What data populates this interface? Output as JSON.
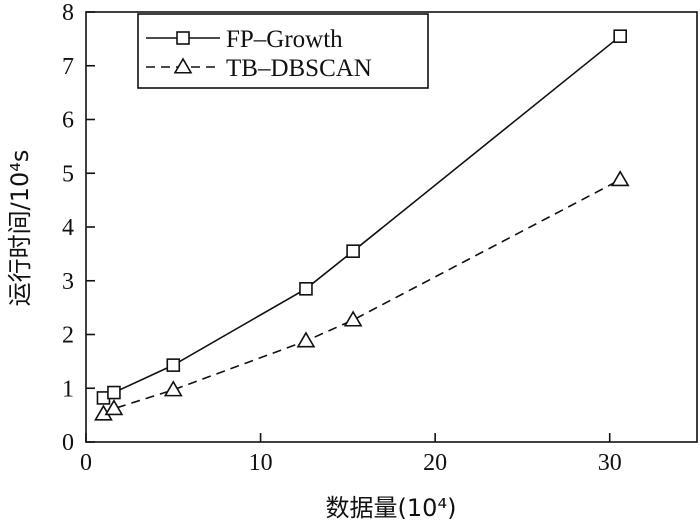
{
  "chart_data": {
    "type": "line",
    "xlabel": "数据量(10⁴)",
    "ylabel": "运行时间/10⁴s",
    "xlim": [
      0,
      35
    ],
    "ylim": [
      0,
      8
    ],
    "xticks": [
      0,
      10,
      20,
      30
    ],
    "yticks": [
      0,
      1,
      2,
      3,
      4,
      5,
      6,
      7,
      8
    ],
    "legend_position": "top-left",
    "grid": false,
    "series": [
      {
        "name": "FP–Growth",
        "marker": "square",
        "line_style": "solid",
        "x": [
          1.0,
          1.6,
          5.0,
          12.6,
          15.3,
          30.6
        ],
        "y": [
          0.82,
          0.92,
          1.43,
          2.85,
          3.55,
          7.55
        ]
      },
      {
        "name": "TB–DBSCAN",
        "marker": "triangle",
        "line_style": "dashed",
        "x": [
          1.0,
          1.6,
          5.0,
          12.6,
          15.3,
          30.6
        ],
        "y": [
          0.52,
          0.62,
          0.97,
          1.88,
          2.27,
          4.88
        ]
      }
    ]
  }
}
